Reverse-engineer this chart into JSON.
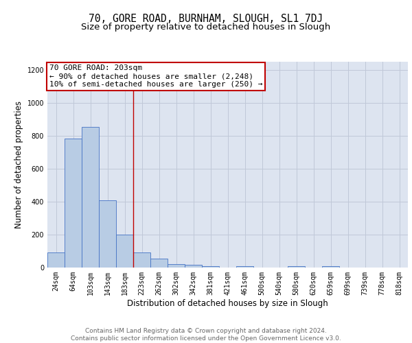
{
  "title": "70, GORE ROAD, BURNHAM, SLOUGH, SL1 7DJ",
  "subtitle": "Size of property relative to detached houses in Slough",
  "xlabel": "Distribution of detached houses by size in Slough",
  "ylabel": "Number of detached properties",
  "categories": [
    "24sqm",
    "64sqm",
    "103sqm",
    "143sqm",
    "183sqm",
    "223sqm",
    "262sqm",
    "302sqm",
    "342sqm",
    "381sqm",
    "421sqm",
    "461sqm",
    "500sqm",
    "540sqm",
    "580sqm",
    "620sqm",
    "659sqm",
    "699sqm",
    "739sqm",
    "778sqm",
    "818sqm"
  ],
  "values": [
    90,
    783,
    855,
    410,
    200,
    90,
    55,
    20,
    15,
    10,
    0,
    10,
    0,
    0,
    10,
    0,
    10,
    0,
    0,
    0,
    0
  ],
  "bar_color": "#b8cce4",
  "bar_edge_color": "#4472c4",
  "grid_color": "#c0c8d8",
  "background_color": "#dde4f0",
  "vline_color": "#c00000",
  "annotation_text": "70 GORE ROAD: 203sqm\n← 90% of detached houses are smaller (2,248)\n10% of semi-detached houses are larger (250) →",
  "annotation_box_color": "white",
  "annotation_box_edge_color": "#c00000",
  "ylim": [
    0,
    1250
  ],
  "yticks": [
    0,
    200,
    400,
    600,
    800,
    1000,
    1200
  ],
  "footer_text": "Contains HM Land Registry data © Crown copyright and database right 2024.\nContains public sector information licensed under the Open Government Licence v3.0.",
  "title_fontsize": 10.5,
  "subtitle_fontsize": 9.5,
  "label_fontsize": 8.5,
  "tick_fontsize": 7,
  "footer_fontsize": 6.5,
  "annot_fontsize": 8
}
